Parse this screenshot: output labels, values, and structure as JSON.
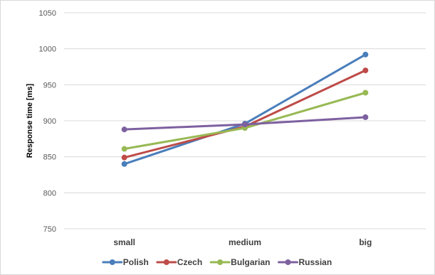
{
  "chart_data": {
    "type": "line",
    "title": "",
    "xlabel": "",
    "ylabel": "Response time [ms]",
    "categories": [
      "small",
      "medium",
      "big"
    ],
    "ylim": [
      750,
      1050
    ],
    "yticks": [
      750,
      800,
      850,
      900,
      950,
      1000,
      1050
    ],
    "grid": true,
    "legend_position": "bottom",
    "series": [
      {
        "name": "Polish",
        "color": "#4a7ebb",
        "values": [
          840,
          896,
          992
        ]
      },
      {
        "name": "Czech",
        "color": "#be4b48",
        "values": [
          849,
          892,
          970
        ]
      },
      {
        "name": "Bulgarian",
        "color": "#98b954",
        "values": [
          861,
          890,
          939
        ]
      },
      {
        "name": "Russian",
        "color": "#7d60a0",
        "values": [
          888,
          895,
          905
        ]
      }
    ]
  }
}
